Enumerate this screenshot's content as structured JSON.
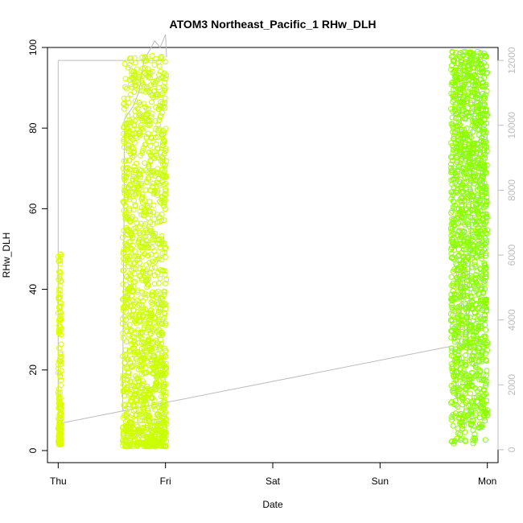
{
  "chart_data": {
    "type": "scatter",
    "title": "ATOM3 Northeast_Pacific_1 RHw_DLH",
    "xlabel": "Date",
    "ylabel": "RHw_DLH",
    "x_unit": "days since Thursday 00:00",
    "x_ticks": [
      {
        "label": "Thu",
        "value": 0
      },
      {
        "label": "Fri",
        "value": 1
      },
      {
        "label": "Sat",
        "value": 2
      },
      {
        "label": "Sun",
        "value": 3
      },
      {
        "label": "Mon",
        "value": 4
      }
    ],
    "xlim": [
      -0.1,
      4.1
    ],
    "ylim": [
      -3,
      100
    ],
    "y_ticks": [
      0,
      20,
      40,
      60,
      80,
      100
    ],
    "y2lim": [
      -400,
      12400
    ],
    "y2_ticks": [
      0,
      2000,
      4000,
      6000,
      8000,
      10000,
      12000
    ],
    "grid": false,
    "colors": {
      "points_early": "#ddff00",
      "points_late": "#88ff00",
      "altitude_line": "#bdbdbd",
      "axis": "#000000"
    },
    "series": [
      {
        "kind": "points",
        "axis": "left",
        "clusters": [
          {
            "x_start": 0.0,
            "x_end": 0.03,
            "y_min": 1.5,
            "y_max": 49,
            "density": 180
          },
          {
            "x_start": 0.6,
            "x_end": 1.01,
            "y_min": 1,
            "y_max": 98,
            "density": 1400
          },
          {
            "x_start": 3.66,
            "x_end": 4.0,
            "y_min": 1.5,
            "y_max": 99,
            "density": 1400
          }
        ]
      },
      {
        "kind": "line",
        "axis": "right",
        "points": [
          [
            0.0,
            12000
          ],
          [
            0.0,
            800
          ],
          [
            3.68,
            3200
          ],
          [
            3.72,
            1500
          ],
          [
            3.78,
            6000
          ],
          [
            3.82,
            3000
          ],
          [
            3.86,
            10000
          ],
          [
            3.9,
            11400
          ],
          [
            3.93,
            10900
          ],
          [
            3.97,
            8000
          ],
          [
            4.0,
            9800
          ],
          [
            0.6,
            1200
          ],
          [
            0.62,
            10200
          ],
          [
            0.7,
            10600
          ],
          [
            0.75,
            11000
          ],
          [
            0.8,
            12000
          ],
          [
            0.9,
            12600
          ],
          [
            0.95,
            12400
          ],
          [
            1.0,
            12800
          ],
          [
            1.01,
            12100
          ]
        ]
      }
    ]
  }
}
